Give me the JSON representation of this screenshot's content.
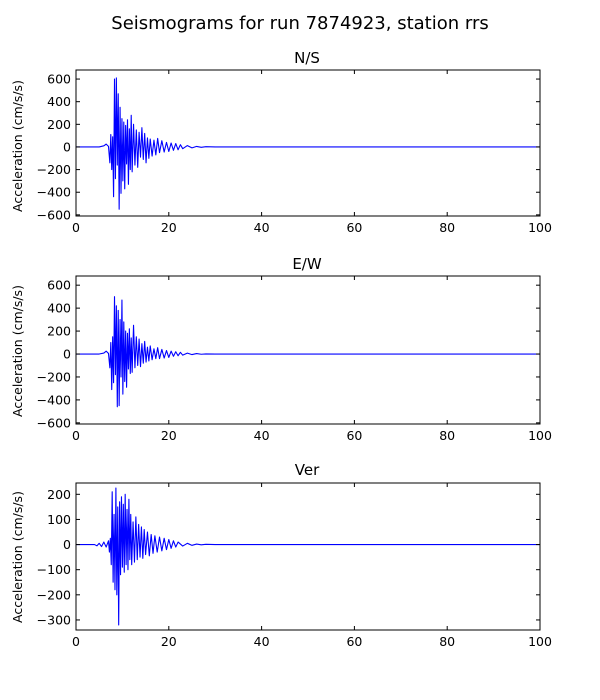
{
  "chart_data": {
    "type": "line",
    "title": "Seismograms for run 7874923, station rrs",
    "line_color": "#0000ff",
    "panels": [
      {
        "title": "N/S",
        "ylabel": "Acceleration (cm/s/s)",
        "xlim": [
          0,
          100
        ],
        "ylim": [
          -610,
          680
        ],
        "xticks": [
          0,
          20,
          40,
          60,
          80,
          100
        ],
        "yticks": [
          -600,
          -400,
          -200,
          0,
          200,
          400,
          600
        ],
        "series": [
          {
            "x": [
              0,
              5,
              6,
              6.5,
              7,
              7.3,
              7.5,
              7.7,
              7.9,
              8.1,
              8.3,
              8.5,
              8.7,
              8.9,
              9.1,
              9.3,
              9.5,
              9.7,
              9.9,
              10.1,
              10.3,
              10.5,
              10.7,
              10.9,
              11.1,
              11.3,
              11.5,
              11.7,
              11.9,
              12.1,
              12.4,
              12.7,
              13,
              13.3,
              13.6,
              13.9,
              14.2,
              14.5,
              14.8,
              15.1,
              15.4,
              15.7,
              16,
              16.4,
              16.8,
              17.2,
              17.6,
              18,
              18.5,
              19,
              19.5,
              20,
              20.5,
              21,
              21.5,
              22,
              22.5,
              23,
              24,
              25,
              26,
              27,
              28,
              30,
              100
            ],
            "y": [
              0,
              0,
              10,
              25,
              5,
              -140,
              110,
              -200,
              90,
              -440,
              600,
              -280,
              610,
              -160,
              470,
              -550,
              350,
              -410,
              250,
              -300,
              220,
              -370,
              190,
              -150,
              240,
              -330,
              160,
              -200,
              280,
              -220,
              200,
              -160,
              150,
              -180,
              130,
              -90,
              170,
              -110,
              120,
              -140,
              80,
              -100,
              70,
              -80,
              60,
              -70,
              75,
              -50,
              55,
              -45,
              40,
              -40,
              35,
              -30,
              30,
              -25,
              20,
              -15,
              12,
              -8,
              5,
              -3,
              2,
              0,
              0
            ]
          }
        ]
      },
      {
        "title": "E/W",
        "ylabel": "Acceleration (cm/s/s)",
        "xlim": [
          0,
          100
        ],
        "ylim": [
          -610,
          680
        ],
        "xticks": [
          0,
          20,
          40,
          60,
          80,
          100
        ],
        "yticks": [
          -600,
          -400,
          -200,
          0,
          200,
          400,
          600
        ],
        "series": [
          {
            "x": [
              0,
              5,
              6,
              6.5,
              7,
              7.3,
              7.5,
              7.7,
              7.9,
              8.1,
              8.3,
              8.5,
              8.7,
              8.9,
              9.1,
              9.3,
              9.5,
              9.7,
              9.9,
              10.1,
              10.3,
              10.5,
              10.7,
              10.9,
              11.1,
              11.3,
              11.5,
              11.7,
              11.9,
              12.1,
              12.4,
              12.7,
              13,
              13.3,
              13.6,
              13.9,
              14.2,
              14.5,
              14.8,
              15.1,
              15.4,
              15.7,
              16,
              16.4,
              16.8,
              17.2,
              17.6,
              18,
              18.5,
              19,
              19.5,
              20,
              20.5,
              21,
              21.5,
              22,
              22.5,
              23,
              24,
              25,
              26,
              27,
              28,
              30,
              100
            ],
            "y": [
              0,
              0,
              8,
              25,
              5,
              -120,
              100,
              -310,
              150,
              -250,
              500,
              -180,
              420,
              -460,
              380,
              -450,
              300,
              -200,
              470,
              -350,
              280,
              -240,
              200,
              -290,
              180,
              -130,
              220,
              -170,
              140,
              -160,
              250,
              -120,
              150,
              -100,
              130,
              -110,
              90,
              -80,
              110,
              -70,
              60,
              -60,
              70,
              -50,
              45,
              -40,
              55,
              -40,
              40,
              -35,
              30,
              -30,
              25,
              -20,
              20,
              -15,
              15,
              -10,
              8,
              -5,
              4,
              -2,
              1,
              0,
              0
            ]
          }
        ]
      },
      {
        "title": "Ver",
        "ylabel": "Acceleration (cm/s/s)",
        "xlim": [
          0,
          100
        ],
        "ylim": [
          -340,
          245
        ],
        "xticks": [
          0,
          20,
          40,
          60,
          80,
          100
        ],
        "yticks": [
          -300,
          -200,
          -100,
          0,
          100,
          200
        ],
        "series": [
          {
            "x": [
              0,
              4,
              4.5,
              5,
              5.5,
              6,
              6.5,
              7,
              7.2,
              7.4,
              7.6,
              7.8,
              8,
              8.2,
              8.4,
              8.6,
              8.8,
              9,
              9.2,
              9.4,
              9.6,
              9.8,
              10,
              10.2,
              10.4,
              10.6,
              10.8,
              11,
              11.2,
              11.4,
              11.6,
              11.8,
              12,
              12.3,
              12.6,
              12.9,
              13.2,
              13.5,
              13.8,
              14.1,
              14.4,
              14.7,
              15,
              15.4,
              15.8,
              16.2,
              16.6,
              17,
              17.5,
              18,
              18.5,
              19,
              19.5,
              20,
              20.5,
              21,
              21.5,
              22,
              23,
              24,
              25,
              26,
              27,
              28,
              30,
              100
            ],
            "y": [
              0,
              0,
              -5,
              5,
              -8,
              10,
              -10,
              15,
              -30,
              25,
              -80,
              210,
              -150,
              120,
              -180,
              225,
              -200,
              150,
              -320,
              170,
              -120,
              190,
              -90,
              160,
              -110,
              200,
              -80,
              140,
              -100,
              180,
              -60,
              120,
              -80,
              90,
              -70,
              110,
              -60,
              80,
              -50,
              70,
              -55,
              60,
              -40,
              50,
              -45,
              40,
              -35,
              35,
              -30,
              30,
              -25,
              25,
              -20,
              20,
              -15,
              15,
              -10,
              10,
              -6,
              5,
              -3,
              2,
              -1,
              1,
              0,
              0
            ]
          }
        ]
      }
    ]
  }
}
